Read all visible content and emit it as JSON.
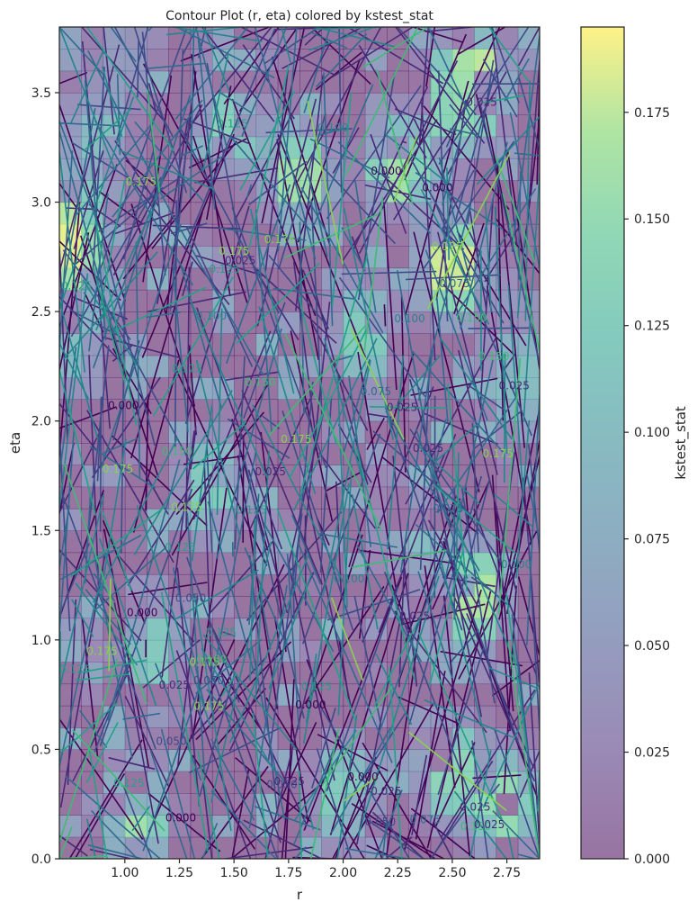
{
  "chart_data": {
    "type": "heatmap",
    "title": "Contour Plot (r, eta) colored by kstest_stat",
    "xlabel": "r",
    "ylabel": "eta",
    "xlim": [
      0.7,
      2.9
    ],
    "ylim": [
      0,
      3.8
    ],
    "x_ticks": [
      1.0,
      1.25,
      1.5,
      1.75,
      2.0,
      2.25,
      2.5,
      2.75
    ],
    "x_tick_labels": [
      "1.00",
      "1.25",
      "1.50",
      "1.75",
      "2.00",
      "2.25",
      "2.50",
      "2.75"
    ],
    "y_ticks": [
      0.0,
      0.5,
      1.0,
      1.5,
      2.0,
      2.5,
      3.0,
      3.5
    ],
    "y_tick_labels": [
      "0.0",
      "0.5",
      "1.0",
      "1.5",
      "2.0",
      "2.5",
      "3.0",
      "3.5"
    ],
    "colorbar": {
      "label": "kstest_stat",
      "range": [
        0,
        0.195
      ],
      "colormap": "viridis",
      "ticks": [
        0,
        0.025,
        0.05,
        0.075,
        0.1,
        0.125,
        0.15,
        0.175
      ],
      "tick_labels": [
        "0.000",
        "0.025",
        "0.050",
        "0.075",
        "0.100",
        "0.125",
        "0.150",
        "0.175"
      ]
    },
    "contour_levels": [
      0,
      0.025,
      0.05,
      0.075,
      0.1,
      0.125,
      0.15,
      0.175
    ],
    "grid": false,
    "cells": [
      {
        "r": 0.75,
        "eta": 2.8,
        "value": 0.19
      },
      {
        "r": 0.75,
        "eta": 3.3,
        "value": 0.0
      },
      {
        "r": 0.75,
        "eta": 2.4,
        "value": 0.1
      },
      {
        "r": 0.85,
        "eta": 3.25,
        "value": 0.15
      },
      {
        "r": 1.5,
        "eta": 3.4,
        "value": 0.14
      },
      {
        "r": 1.5,
        "eta": 3.7,
        "value": 0.05
      },
      {
        "r": 1.0,
        "eta": 3.7,
        "value": 0.05
      },
      {
        "r": 2.25,
        "eta": 3.15,
        "value": 0.16
      },
      {
        "r": 2.5,
        "eta": 3.45,
        "value": 0.13
      },
      {
        "r": 2.6,
        "eta": 3.55,
        "value": 0.18
      },
      {
        "r": 2.5,
        "eta": 2.7,
        "value": 0.18
      },
      {
        "r": 2.6,
        "eta": 1.2,
        "value": 0.17
      },
      {
        "r": 2.5,
        "eta": 0.4,
        "value": 0.14
      },
      {
        "r": 2.75,
        "eta": 0.25,
        "value": 0.15
      },
      {
        "r": 1.05,
        "eta": 0.2,
        "value": 0.16
      },
      {
        "r": 2.0,
        "eta": 0.3,
        "value": 0.12
      },
      {
        "r": 1.8,
        "eta": 3.1,
        "value": 0.16
      },
      {
        "r": 2.1,
        "eta": 2.4,
        "value": 0.12
      },
      {
        "r": 1.4,
        "eta": 1.7,
        "value": 0.12
      },
      {
        "r": 1.15,
        "eta": 0.9,
        "value": 0.12
      },
      {
        "r": 2.8,
        "eta": 2.2,
        "value": 0.1
      },
      {
        "r": 2.3,
        "eta": 1.5,
        "value": 0.1
      }
    ],
    "contour_label_texts": [
      "0.000",
      "0.025",
      "0.050",
      "0.075",
      "0.100",
      "0.125",
      "0.150",
      "0.175"
    ]
  }
}
